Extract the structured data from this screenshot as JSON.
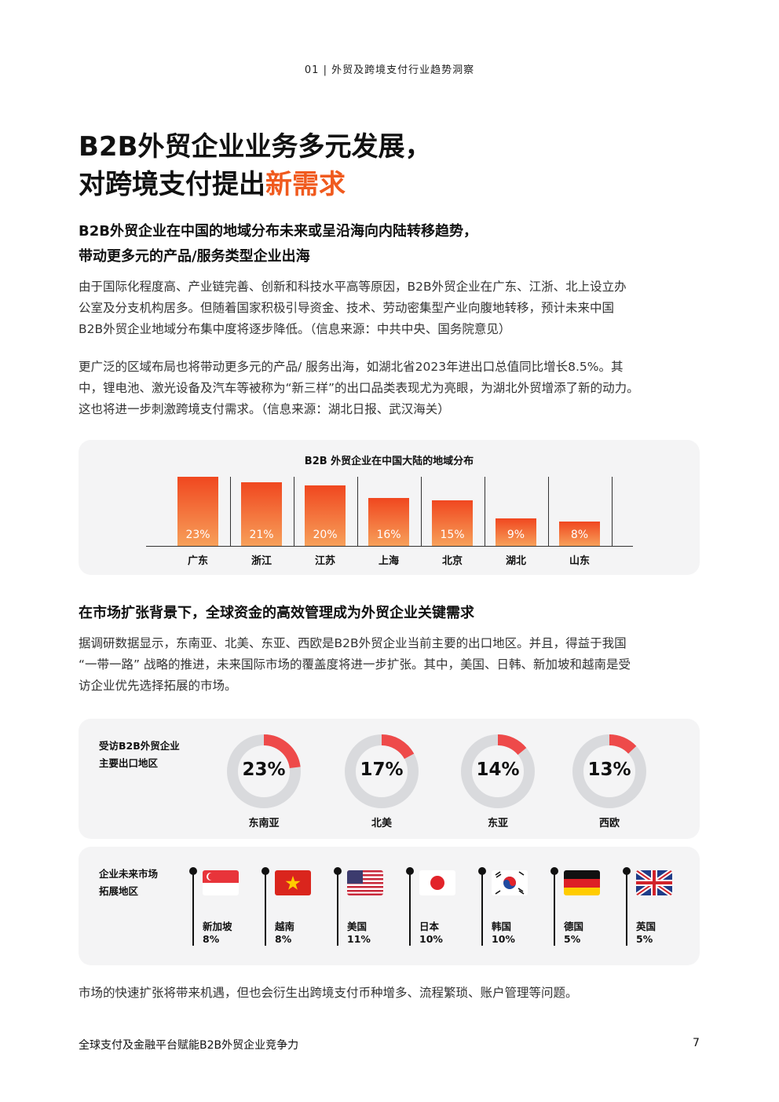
{
  "header": {
    "text": "01 | 外贸及跨境支付行业趋势洞察"
  },
  "title": {
    "line1": "B2B外贸企业业务多元发展，",
    "line2_plain": "对跨境支付提出",
    "line2_accent": "新需求"
  },
  "section1": {
    "heading_line1": "B2B外贸企业在中国的地域分布未来或呈沿海向内陆转移趋势，",
    "heading_line2": "带动更多元的产品/服务类型企业出海",
    "para1": [
      "由于国际化程度高、产业链完善、创新和科技水平高等原因，B2B外贸企业在广东、江浙、北上设立办",
      "公室及分支机构居多。但随着国家积极引导资金、技术、劳动密集型产业向腹地转移，预计未来中国",
      "B2B外贸企业地域分布集中度将逐步降低。（信息来源：中共中央、国务院意见）"
    ],
    "para2": [
      "更广泛的区域布局也将带动更多元的产品/ 服务出海，如湖北省2023年进出口总值同比增长8.5%。其",
      "中，锂电池、激光设备及汽车等被称为“新三样”的出口品类表现尤为亮眼，为湖北外贸增添了新的动力。",
      "这也将进一步刺激跨境支付需求。（信息来源：湖北日报、武汉海关）"
    ]
  },
  "chart_data": {
    "type": "bar",
    "title": "B2B 外贸企业在中国大陆的地域分布",
    "categories": [
      "广东",
      "浙江",
      "江苏",
      "上海",
      "北京",
      "湖北",
      "山东"
    ],
    "values": [
      23,
      21,
      20,
      16,
      15,
      9,
      8
    ],
    "labels": [
      "23%",
      "21%",
      "20%",
      "16%",
      "15%",
      "9%",
      "8%"
    ],
    "ylim": [
      0,
      25
    ],
    "color": "#f0471f"
  },
  "section2": {
    "heading": "在市场扩张背景下，全球资金的高效管理成为外贸企业关键需求",
    "para": [
      "据调研数据显示，东南亚、北美、东亚、西欧是B2B外贸企业当前主要的出口地区。并且，得益于我国",
      "“一带一路” 战略的推进，未来国际市场的覆盖度将进一步扩张。其中，美国、日韩、新加坡和越南是受",
      "访企业优先选择拓展的市场。"
    ]
  },
  "export_regions": {
    "label_line1": "受访B2B外贸企业",
    "label_line2": "主要出口地区",
    "items": [
      {
        "name": "东南亚",
        "value": 23,
        "label": "23%"
      },
      {
        "name": "北美",
        "value": 17,
        "label": "17%"
      },
      {
        "name": "东亚",
        "value": 14,
        "label": "14%"
      },
      {
        "name": "西欧",
        "value": 13,
        "label": "13%"
      }
    ],
    "accent_color": "#ee4a4a",
    "track_color": "#d9dadd"
  },
  "future_markets": {
    "label_line1": "企业未来市场",
    "label_line2": "拓展地区",
    "items": [
      {
        "name": "新加坡",
        "pct": "8%",
        "flag": "singapore-flag"
      },
      {
        "name": "越南",
        "pct": "8%",
        "flag": "vietnam-flag"
      },
      {
        "name": "美国",
        "pct": "11%",
        "flag": "usa-flag"
      },
      {
        "name": "日本",
        "pct": "10%",
        "flag": "japan-flag"
      },
      {
        "name": "韩国",
        "pct": "10%",
        "flag": "korea-flag"
      },
      {
        "name": "德国",
        "pct": "5%",
        "flag": "germany-flag"
      },
      {
        "name": "英国",
        "pct": "5%",
        "flag": "uk-flag"
      }
    ]
  },
  "closing": "市场的快速扩张将带来机遇，但也会衍生出跨境支付币种增多、流程繁琐、账户管理等问题。",
  "footer": {
    "left": "全球支付及金融平台赋能B2B外贸企业竞争力",
    "page": "7"
  }
}
